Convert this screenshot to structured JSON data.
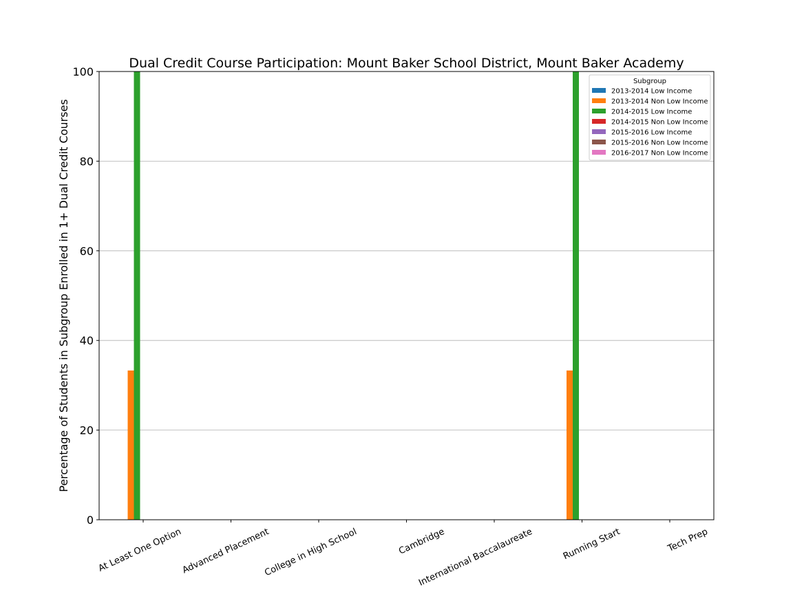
{
  "chart_data": {
    "type": "bar",
    "title": "Dual Credit Course Participation: Mount Baker School District, Mount Baker Academy",
    "xlabel": "",
    "ylabel": "Percentage of Students in Subgroup Enrolled in 1+ Dual Credit Courses",
    "ylim": [
      0,
      100
    ],
    "yticks": [
      0,
      20,
      40,
      60,
      80,
      100
    ],
    "grid": "horizontal",
    "legend_title": "Subgroup",
    "legend_position": "top-right",
    "categories": [
      "At Least One Option",
      "Advanced Placement",
      "College in High School",
      "Cambridge",
      "International Baccalaureate",
      "Running Start",
      "Tech Prep"
    ],
    "series": [
      {
        "name": "2013-2014 Low Income",
        "color": "#1f77b4",
        "values": [
          0,
          0,
          0,
          0,
          0,
          0,
          0
        ]
      },
      {
        "name": "2013-2014 Non Low Income",
        "color": "#ff7f0e",
        "values": [
          33.3,
          0,
          0,
          0,
          0,
          33.3,
          0
        ]
      },
      {
        "name": "2014-2015 Low Income",
        "color": "#2ca02c",
        "values": [
          100,
          0,
          0,
          0,
          0,
          100,
          0
        ]
      },
      {
        "name": "2014-2015 Non Low Income",
        "color": "#d62728",
        "values": [
          0,
          0,
          0,
          0,
          0,
          0,
          0
        ]
      },
      {
        "name": "2015-2016 Low Income",
        "color": "#9467bd",
        "values": [
          0,
          0,
          0,
          0,
          0,
          0,
          0
        ]
      },
      {
        "name": "2015-2016 Non Low Income",
        "color": "#8c564b",
        "values": [
          0,
          0,
          0,
          0,
          0,
          0,
          0
        ]
      },
      {
        "name": "2016-2017 Non Low Income",
        "color": "#e377c2",
        "values": [
          0,
          0,
          0,
          0,
          0,
          0,
          0
        ]
      }
    ]
  }
}
